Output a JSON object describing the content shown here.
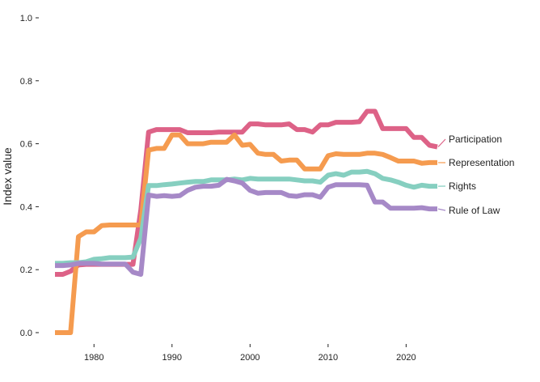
{
  "chart_data": {
    "type": "line",
    "title": "",
    "xlabel": "",
    "ylabel": "Index value",
    "xlim": [
      1975,
      2024
    ],
    "ylim": [
      0,
      1
    ],
    "x_ticks": [
      1980,
      1990,
      2000,
      2010,
      2020
    ],
    "y_ticks": [
      "0.0",
      "0.2",
      "0.4",
      "0.6",
      "0.8",
      "1.0"
    ],
    "grid": false,
    "legend": "direct labels at line ends",
    "x": [
      1975,
      1976,
      1977,
      1978,
      1979,
      1980,
      1981,
      1982,
      1983,
      1984,
      1985,
      1986,
      1987,
      1988,
      1989,
      1990,
      1991,
      1992,
      1993,
      1994,
      1995,
      1996,
      1997,
      1998,
      1999,
      2000,
      2001,
      2002,
      2003,
      2004,
      2005,
      2006,
      2007,
      2008,
      2009,
      2010,
      2011,
      2012,
      2013,
      2014,
      2015,
      2016,
      2017,
      2018,
      2019,
      2020,
      2021,
      2022,
      2023,
      2024
    ],
    "series": [
      {
        "name": "Participation",
        "color": "#dd6287",
        "values": [
          0.185,
          0.185,
          0.195,
          0.215,
          0.217,
          0.217,
          0.217,
          0.217,
          0.217,
          0.217,
          0.217,
          0.39,
          0.637,
          0.645,
          0.645,
          0.645,
          0.645,
          0.635,
          0.635,
          0.635,
          0.635,
          0.637,
          0.637,
          0.637,
          0.637,
          0.663,
          0.663,
          0.66,
          0.66,
          0.66,
          0.663,
          0.645,
          0.645,
          0.637,
          0.66,
          0.66,
          0.668,
          0.668,
          0.668,
          0.67,
          0.703,
          0.703,
          0.648,
          0.648,
          0.648,
          0.648,
          0.62,
          0.62,
          0.595,
          0.59
        ]
      },
      {
        "name": "Representation",
        "color": "#f59b4f",
        "values": [
          0,
          0,
          0,
          0.305,
          0.32,
          0.32,
          0.34,
          0.342,
          0.342,
          0.342,
          0.342,
          0.342,
          0.58,
          0.585,
          0.585,
          0.628,
          0.628,
          0.6,
          0.6,
          0.6,
          0.605,
          0.605,
          0.605,
          0.628,
          0.595,
          0.598,
          0.57,
          0.566,
          0.566,
          0.545,
          0.548,
          0.548,
          0.52,
          0.52,
          0.52,
          0.562,
          0.568,
          0.566,
          0.566,
          0.566,
          0.57,
          0.57,
          0.566,
          0.556,
          0.545,
          0.545,
          0.545,
          0.538,
          0.54,
          0.54
        ]
      },
      {
        "name": "Rights",
        "color": "#86cfc0",
        "values": [
          0.22,
          0.22,
          0.222,
          0.222,
          0.225,
          0.233,
          0.235,
          0.238,
          0.238,
          0.238,
          0.24,
          0.3,
          0.467,
          0.467,
          0.47,
          0.472,
          0.475,
          0.478,
          0.48,
          0.48,
          0.485,
          0.485,
          0.485,
          0.488,
          0.485,
          0.49,
          0.488,
          0.488,
          0.488,
          0.488,
          0.488,
          0.485,
          0.482,
          0.482,
          0.478,
          0.5,
          0.505,
          0.5,
          0.51,
          0.51,
          0.512,
          0.505,
          0.49,
          0.485,
          0.478,
          0.468,
          0.462,
          0.468,
          0.465,
          0.465
        ]
      },
      {
        "name": "Rule of Law",
        "color": "#a689c7",
        "values": [
          0.213,
          0.213,
          0.215,
          0.22,
          0.22,
          0.22,
          0.218,
          0.218,
          0.218,
          0.218,
          0.192,
          0.185,
          0.437,
          0.433,
          0.435,
          0.433,
          0.435,
          0.452,
          0.462,
          0.465,
          0.465,
          0.468,
          0.487,
          0.482,
          0.475,
          0.452,
          0.443,
          0.445,
          0.445,
          0.445,
          0.435,
          0.433,
          0.438,
          0.438,
          0.43,
          0.462,
          0.47,
          0.47,
          0.47,
          0.47,
          0.468,
          0.415,
          0.415,
          0.395,
          0.395,
          0.395,
          0.395,
          0.397,
          0.393,
          0.393
        ]
      }
    ]
  }
}
